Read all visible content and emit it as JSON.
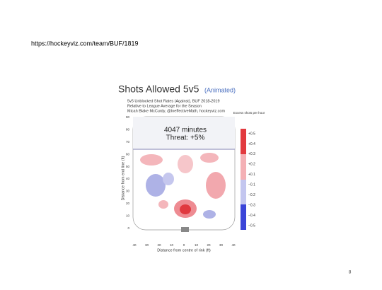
{
  "slide": {
    "url": "https://hockeyviz.com/team/BUF/1819",
    "page_number": "8"
  },
  "figure": {
    "title": "Shots Allowed 5v5",
    "title_note": "(Animated)",
    "subtitle": [
      "5v5 Unblocked Shot Rates (Against), BUF 2018-2019",
      "Relative to League Average for the Season",
      "Micah Blake McCurdy, @IneffectiveMath, hockeyviz.com"
    ],
    "minutes": "4047 minutes",
    "threat": "Threat: +5%",
    "y_label": "Distance from end line (ft)",
    "x_label": "Distance from centre of rink (ft)",
    "y_ticks": [
      "90",
      "80",
      "70",
      "60",
      "50",
      "40",
      "30",
      "20",
      "10",
      "0"
    ],
    "x_ticks": [
      "40",
      "30",
      "20",
      "10",
      "0",
      "10",
      "20",
      "30",
      "40"
    ],
    "colorbar_title": "Excess shots per hour",
    "colorbar_ticks": [
      "+0.5",
      "+0.4",
      "+0.3",
      "+0.2",
      "+0.1",
      "−0.1",
      "−0.2",
      "−0.3",
      "−0.4",
      "−0.5"
    ]
  }
}
